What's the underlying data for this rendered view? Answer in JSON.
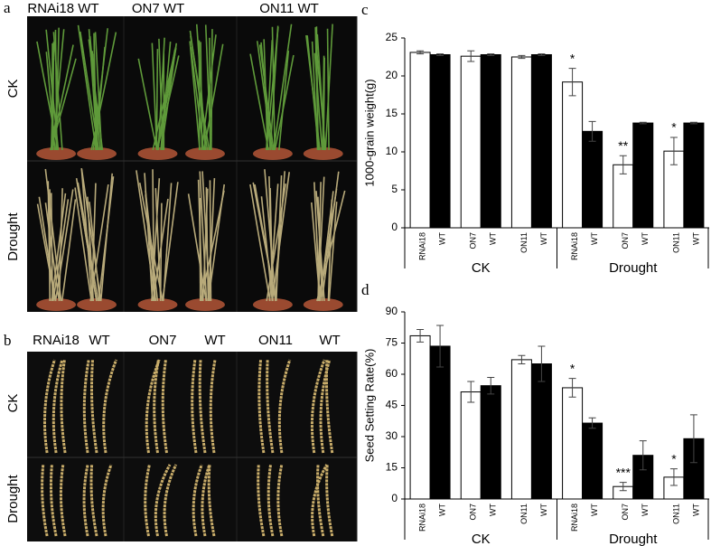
{
  "photo_panels": {
    "a": {
      "label": "a",
      "columns": [
        "RNAi18 WT",
        "ON7  WT",
        "ON11  WT"
      ],
      "rows": [
        "CK",
        "Drought"
      ]
    },
    "b": {
      "label": "b",
      "columns": [
        "RNAi18",
        "WT",
        "ON7",
        "WT",
        "ON11",
        "WT"
      ],
      "rows": [
        "CK",
        "Drought"
      ]
    }
  },
  "chart_data": [
    {
      "type": "bar",
      "panel_label": "c",
      "ylabel": "1000-grain weight(g)",
      "categories": [
        "RNAi18",
        "WT",
        "ON7",
        "WT",
        "ON11",
        "WT",
        "RNAi18",
        "WT",
        "ON7",
        "WT",
        "ON11",
        "WT"
      ],
      "values": [
        23.1,
        22.8,
        22.6,
        22.8,
        22.5,
        22.8,
        19.2,
        12.7,
        8.3,
        13.8,
        10.1,
        13.8
      ],
      "errors": [
        0.2,
        0.1,
        0.7,
        0.1,
        0.2,
        0.1,
        1.8,
        1.3,
        1.2,
        0.1,
        1.8,
        0.1
      ],
      "significance": [
        null,
        null,
        null,
        null,
        null,
        null,
        "*",
        null,
        "**",
        null,
        "*",
        null
      ],
      "groups": [
        "CK",
        "Drought"
      ],
      "colors": [
        "#ffffff",
        "#000000"
      ],
      "ylim": [
        0,
        25
      ],
      "yticks": [
        0,
        5,
        10,
        15,
        20,
        25
      ]
    },
    {
      "type": "bar",
      "panel_label": "d",
      "ylabel": "Seed Setting Rate(%)",
      "categories": [
        "RNAi18",
        "WT",
        "ON7",
        "WT",
        "ON11",
        "WT",
        "RNAi18",
        "WT",
        "ON7",
        "WT",
        "ON11",
        "WT"
      ],
      "values": [
        78.5,
        73.5,
        51.5,
        54.5,
        67,
        65,
        53.5,
        36.5,
        6,
        21,
        10.5,
        29
      ],
      "errors": [
        3,
        10,
        5,
        4,
        2,
        8.5,
        4.5,
        2.5,
        2,
        7,
        4,
        11.5
      ],
      "significance": [
        null,
        null,
        null,
        null,
        null,
        null,
        "*",
        null,
        "***",
        null,
        "*",
        null
      ],
      "groups": [
        "CK",
        "Drought"
      ],
      "colors": [
        "#ffffff",
        "#000000"
      ],
      "ylim": [
        0,
        90
      ],
      "yticks": [
        0,
        15,
        30,
        45,
        60,
        75,
        90
      ]
    }
  ]
}
